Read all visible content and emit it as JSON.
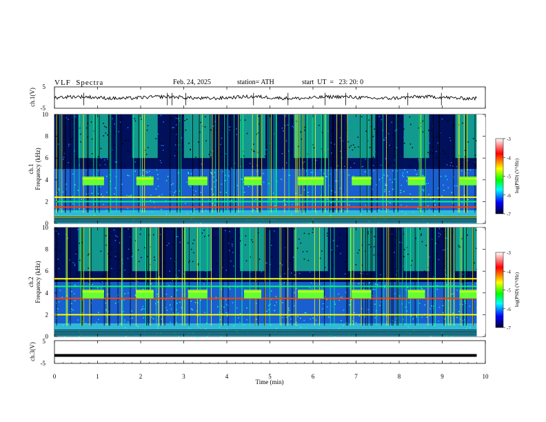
{
  "header": {
    "title": "VLF  Spectra",
    "date": "Feb. 24, 2025",
    "station": "station= ATH",
    "start": "start  UT  =   23: 20: 0"
  },
  "chart_data": [
    {
      "type": "line",
      "panel": "ch1-waveform",
      "ylabel": "ch.1(V)",
      "ylim": [
        -5,
        5
      ],
      "yticklabels": [
        "5",
        "-5"
      ],
      "x_range_min": [
        0,
        9.8
      ],
      "baseline": 0,
      "spike_x_min": [
        0.68,
        2.62,
        2.73,
        3.05,
        4.62,
        5.42,
        6.28,
        6.76,
        8.2,
        8.98
      ]
    },
    {
      "type": "heatmap",
      "panel": "ch1-spectrogram",
      "ylabel": "Frequency  (kHz)",
      "channel_label": "ch.1",
      "ylim": [
        0,
        10
      ],
      "yticks": [
        0,
        2,
        4,
        6,
        8,
        10
      ],
      "x_range_min": [
        0,
        9.8
      ],
      "colorbar": {
        "label": "log(PSD) (V²/Hz)",
        "ticks": [
          -3,
          -4,
          -5,
          -6,
          -7
        ],
        "colors": [
          "#ffffff",
          "#ff0000",
          "#ffff00",
          "#00ff00",
          "#00ffff",
          "#0000ff",
          "#000033"
        ]
      },
      "transmitter_blocks_min": [
        [
          0.65,
          1.15
        ],
        [
          1.9,
          2.3
        ],
        [
          3.1,
          3.55
        ],
        [
          4.4,
          4.8
        ],
        [
          5.65,
          6.25
        ],
        [
          6.9,
          7.35
        ],
        [
          8.2,
          8.6
        ],
        [
          9.4,
          9.8
        ]
      ],
      "transmitter_band_khz": [
        3.5,
        4.3
      ],
      "strong_bands_khz": [
        0.6,
        1.5,
        2.0,
        2.4
      ]
    },
    {
      "type": "heatmap",
      "panel": "ch2-spectrogram",
      "ylabel": "Frequency  (kHz)",
      "channel_label": "ch.2",
      "ylim": [
        0,
        10
      ],
      "yticks": [
        0,
        2,
        4,
        6,
        8,
        10
      ],
      "x_range_min": [
        0,
        9.8
      ],
      "colorbar": {
        "label": "log(PSD) (V²/Hz)",
        "ticks": [
          -3,
          -4,
          -5,
          -6,
          -7
        ],
        "colors": [
          "#ffffff",
          "#ff0000",
          "#ffff00",
          "#00ff00",
          "#00ffff",
          "#0000ff",
          "#000033"
        ]
      },
      "transmitter_blocks_min": [
        [
          0.65,
          1.15
        ],
        [
          1.9,
          2.3
        ],
        [
          3.1,
          3.55
        ],
        [
          4.4,
          4.8
        ],
        [
          5.65,
          6.25
        ],
        [
          6.9,
          7.35
        ],
        [
          8.2,
          8.6
        ],
        [
          9.4,
          9.8
        ]
      ],
      "transmitter_band_khz": [
        3.5,
        4.3
      ],
      "strong_bands_khz": [
        2.0,
        3.5,
        4.6,
        5.3
      ]
    },
    {
      "type": "line",
      "panel": "ch3-waveform",
      "ylabel": "ch.3(V)",
      "xlabel": "Time  (min)",
      "ylim": [
        -5,
        5
      ],
      "yticklabels": [
        "5",
        "-5"
      ],
      "xlim": [
        0,
        10
      ],
      "xticks": [
        "0",
        "1",
        "2",
        "3",
        "4",
        "5",
        "6",
        "7",
        "8",
        "9",
        "10"
      ],
      "level": -1.5,
      "x_range_min": [
        0,
        9.8
      ]
    }
  ]
}
